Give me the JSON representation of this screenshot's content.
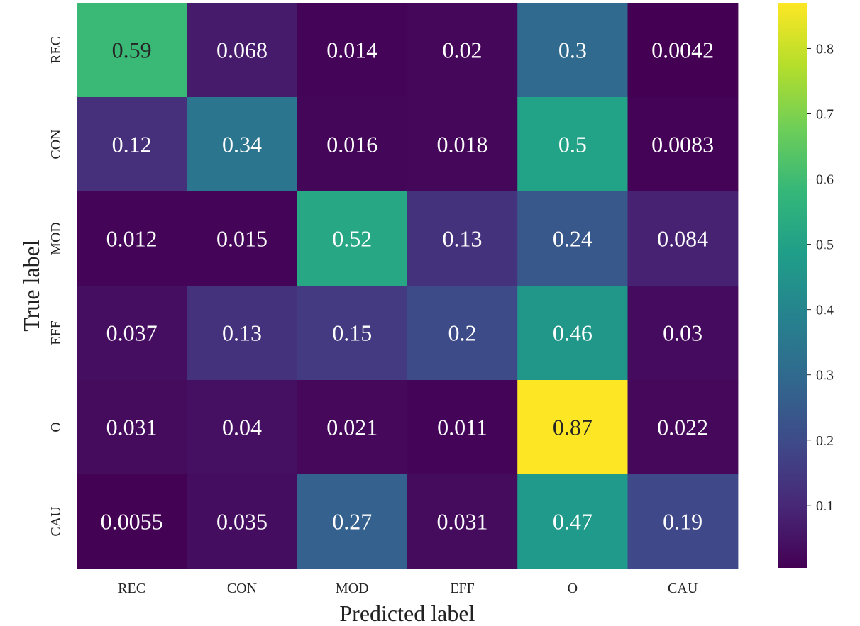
{
  "chart_data": {
    "type": "heatmap",
    "title": "",
    "xlabel": "Predicted label",
    "ylabel": "True label",
    "x_categories": [
      "REC",
      "CON",
      "MOD",
      "EFF",
      "O",
      "CAU"
    ],
    "y_categories": [
      "REC",
      "CON",
      "MOD",
      "EFF",
      "O",
      "CAU"
    ],
    "values": [
      [
        0.59,
        0.068,
        0.014,
        0.02,
        0.3,
        0.0042
      ],
      [
        0.12,
        0.34,
        0.016,
        0.018,
        0.5,
        0.0083
      ],
      [
        0.012,
        0.015,
        0.52,
        0.13,
        0.24,
        0.084
      ],
      [
        0.037,
        0.13,
        0.15,
        0.2,
        0.46,
        0.03
      ],
      [
        0.031,
        0.04,
        0.021,
        0.011,
        0.87,
        0.022
      ],
      [
        0.0055,
        0.035,
        0.27,
        0.031,
        0.47,
        0.19
      ]
    ],
    "cell_labels": [
      [
        "0.59",
        "0.068",
        "0.014",
        "0.02",
        "0.3",
        "0.0042"
      ],
      [
        "0.12",
        "0.34",
        "0.016",
        "0.018",
        "0.5",
        "0.0083"
      ],
      [
        "0.012",
        "0.015",
        "0.52",
        "0.13",
        "0.24",
        "0.084"
      ],
      [
        "0.037",
        "0.13",
        "0.15",
        "0.2",
        "0.46",
        "0.03"
      ],
      [
        "0.031",
        "0.04",
        "0.021",
        "0.011",
        "0.87",
        "0.022"
      ],
      [
        "0.0055",
        "0.035",
        "0.27",
        "0.031",
        "0.47",
        "0.19"
      ]
    ],
    "colormap": "viridis",
    "color_range": [
      0.0042,
      0.87
    ],
    "colorbar_ticks": [
      0.1,
      0.2,
      0.3,
      0.4,
      0.5,
      0.6,
      0.7,
      0.8
    ],
    "colorbar_tick_labels": [
      "0.1",
      "0.2",
      "0.3",
      "0.4",
      "0.5",
      "0.6",
      "0.7",
      "0.8"
    ],
    "grid": false,
    "legend": "colorbar-right"
  },
  "colors": {
    "viridis_stops": [
      "#440154",
      "#482878",
      "#3e4a89",
      "#31688e",
      "#26828e",
      "#1f9e89",
      "#35b779",
      "#6ece58",
      "#b5de2b",
      "#fde725"
    ],
    "text_light": "#ffffff",
    "text_dark": "#262626",
    "axis_text": "#222222"
  }
}
